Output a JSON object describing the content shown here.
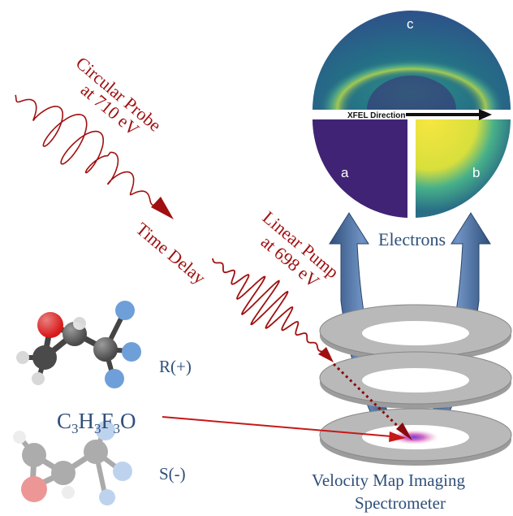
{
  "probe": {
    "line1": "Circular Probe",
    "line2": "at 710 eV"
  },
  "delay": {
    "label": "Time Delay"
  },
  "pump": {
    "line1": "Linear Pump",
    "line2": "at 698 eV"
  },
  "detector": {
    "direction_label": "XFEL Direction",
    "panel_c": "c",
    "panel_a": "a",
    "panel_b": "b"
  },
  "electrons": {
    "label": "Electrons"
  },
  "molecule": {
    "r_label": "R(+)",
    "s_label": "S(-)",
    "formula": {
      "c": "C",
      "c_n": "3",
      "h": "H",
      "h_n": "3",
      "f": "F",
      "f_n": "3",
      "o": "O"
    }
  },
  "spectrometer": {
    "line1": "Velocity Map Imaging",
    "line2": "Spectrometer"
  },
  "colors": {
    "beam_red": "#a01010",
    "label_blue": "#2f4f7a",
    "arrow_blue": "#3d5f8c",
    "plate_gray": "#a7a7a7",
    "detector_yellow": "#f2e23a",
    "detector_purple": "#3b1f6e",
    "detector_teal": "#2a7f86",
    "oxygen_red": "#d81818",
    "carbon_gray": "#4a4a4a",
    "fluorine_blue": "#6f9fd8"
  }
}
